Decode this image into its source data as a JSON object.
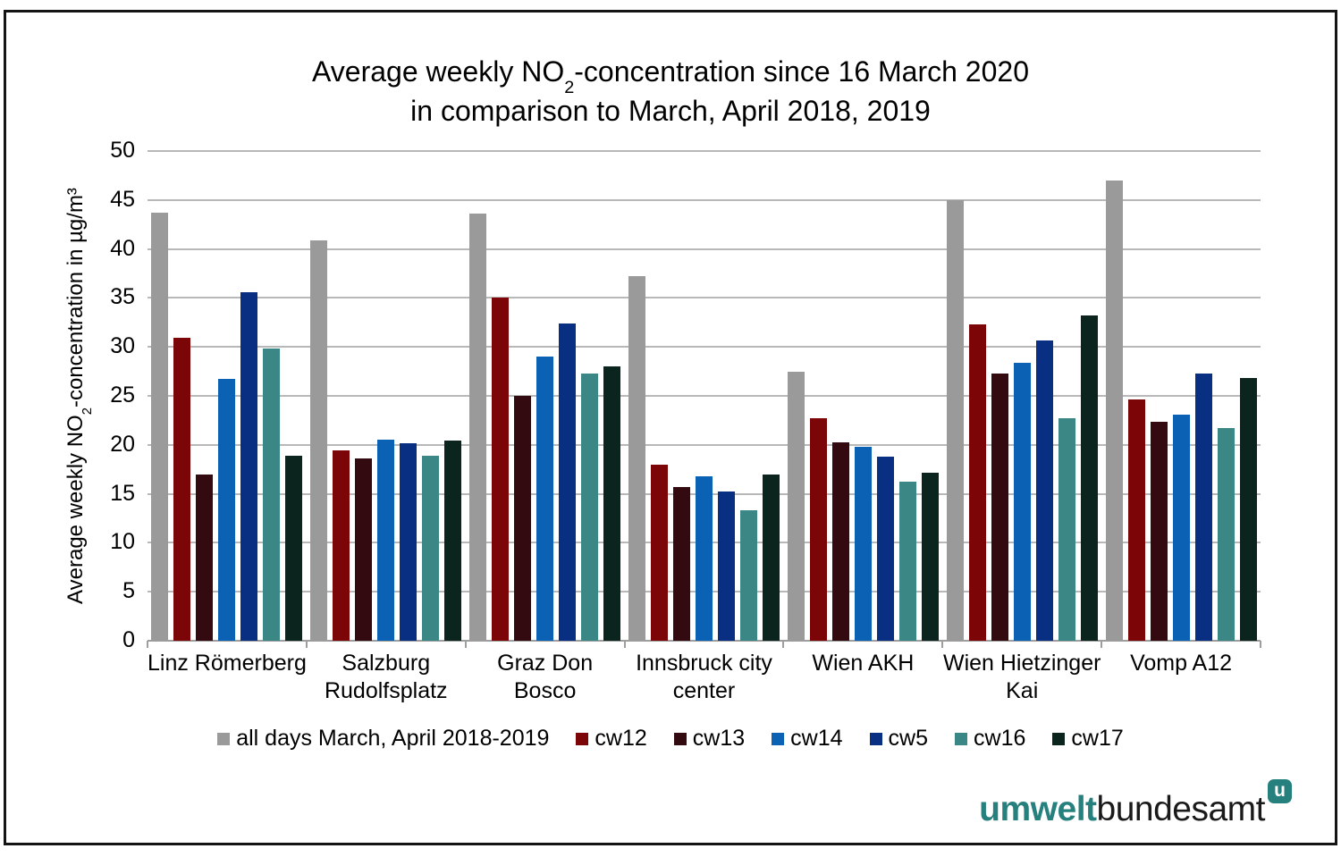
{
  "frame": {
    "border_color": "#141414"
  },
  "title": {
    "line1_prefix": "Average weekly NO",
    "line1_sub": "2",
    "line1_suffix": "-concentration since 16 March 2020",
    "line2": "in comparison to March, April 2018, 2019"
  },
  "y_axis_title": {
    "prefix": "Average weekly NO",
    "sub": "2",
    "suffix": "-concentration in µg/m³"
  },
  "logo": {
    "word1": "umwelt",
    "word2": "bundesamt",
    "badge_letter": "u",
    "teal": "#26807d"
  },
  "chart_data": {
    "type": "bar",
    "title": "Average weekly NO2-concentration since 16 March 2020 in comparison to March, April 2018, 2019",
    "xlabel": "",
    "ylabel": "Average weekly NO2-concentration in µg/m³",
    "ylim": [
      0,
      50
    ],
    "ytick_step": 5,
    "grid": true,
    "legend_position": "bottom",
    "categories": [
      "Linz Römerberg",
      "Salzburg\nRudolfsplatz",
      "Graz Don\nBosco",
      "Innsbruck city\ncenter",
      "Wien AKH",
      "Wien Hietzinger\nKai",
      "Vomp A12"
    ],
    "series": [
      {
        "name": "all days March, April 2018-2019",
        "color": "#9a9a9a",
        "values": [
          43.7,
          40.9,
          43.6,
          37.2,
          27.5,
          45.0,
          47.0
        ]
      },
      {
        "name": "cw12",
        "color": "#7c0607",
        "values": [
          30.9,
          19.4,
          35.0,
          18.0,
          22.7,
          32.3,
          24.6
        ]
      },
      {
        "name": "cw13",
        "color": "#330a10",
        "values": [
          17.0,
          18.6,
          25.0,
          15.7,
          20.3,
          27.3,
          22.4
        ]
      },
      {
        "name": "cw14",
        "color": "#0b62b5",
        "values": [
          26.7,
          20.5,
          29.0,
          16.8,
          19.8,
          28.4,
          23.1
        ]
      },
      {
        "name": "cw5",
        "color": "#082f82",
        "values": [
          35.6,
          20.2,
          32.4,
          15.2,
          18.8,
          30.7,
          27.3
        ]
      },
      {
        "name": "cw16",
        "color": "#3a8786",
        "values": [
          29.8,
          18.9,
          27.3,
          13.3,
          16.2,
          22.7,
          21.7
        ]
      },
      {
        "name": "cw17",
        "color": "#0c241e",
        "values": [
          18.9,
          20.4,
          28.0,
          17.0,
          17.2,
          33.2,
          26.8
        ]
      }
    ],
    "colors": {
      "gridline": "#b8b8b8",
      "axis_line": "#9e9e9e",
      "text": "#000000"
    }
  }
}
